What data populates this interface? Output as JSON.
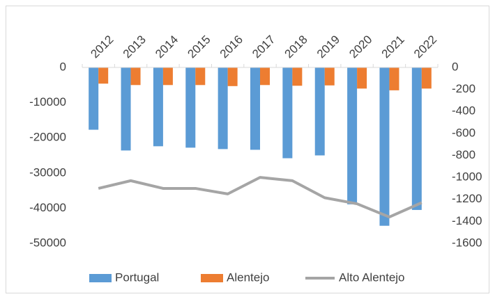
{
  "chart_data": {
    "type": "bar-line",
    "categories": [
      "2012",
      "2013",
      "2014",
      "2015",
      "2016",
      "2017",
      "2018",
      "2019",
      "2020",
      "2021",
      "2022"
    ],
    "series": [
      {
        "name": "Portugal",
        "type": "bar",
        "color": "#5b9bd5",
        "values": [
          -17700,
          -23600,
          -22400,
          -22800,
          -23200,
          -23400,
          -25800,
          -25000,
          -38900,
          -45000,
          -40500
        ]
      },
      {
        "name": "Alentejo",
        "type": "bar",
        "color": "#ed7d31",
        "values": [
          -4600,
          -5000,
          -5000,
          -5000,
          -5300,
          -5000,
          -5200,
          -5100,
          -6000,
          -6500,
          -6000
        ]
      },
      {
        "name": "Alto Alentejo",
        "type": "line",
        "axis": "y2",
        "color": "#a5a5a5",
        "values": [
          -1100,
          -1030,
          -1100,
          -1100,
          -1150,
          -1000,
          -1030,
          -1185,
          -1240,
          -1360,
          -1230
        ]
      }
    ],
    "ylim": [
      -50000,
      0
    ],
    "yticks": [
      0,
      -10000,
      -20000,
      -30000,
      -40000,
      -50000
    ],
    "y2lim": [
      -1600,
      0
    ],
    "y2ticks": [
      0,
      -200,
      -400,
      -600,
      -800,
      -1000,
      -1200,
      -1400,
      -1600
    ],
    "legend": "bottom"
  }
}
